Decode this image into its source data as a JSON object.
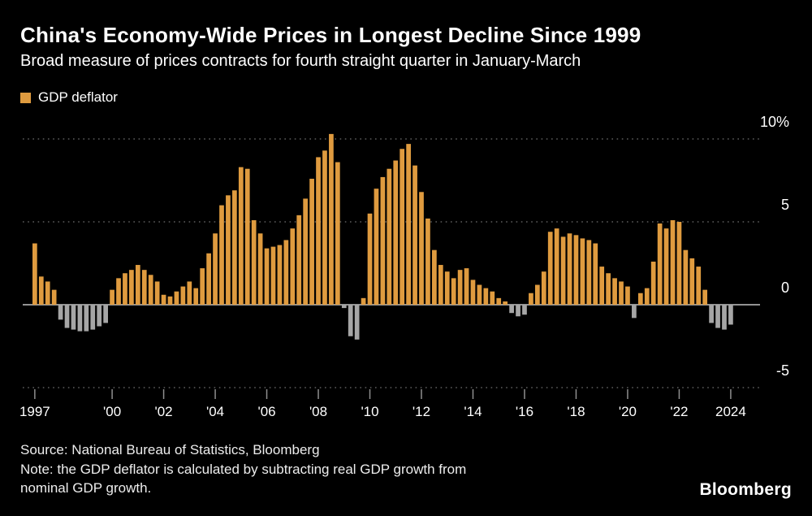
{
  "header": {
    "title": "China's Economy-Wide Prices in Longest Decline Since 1999",
    "subtitle": "Broad measure of prices contracts for fourth straight quarter in January-March"
  },
  "legend": {
    "label": "GDP deflator"
  },
  "footer": {
    "source": "Source: National Bureau of Statistics, Bloomberg",
    "note_line1": "Note: the GDP deflator is calculated by subtracting real GDP growth from",
    "note_line2": "nominal GDP growth.",
    "logo": "Bloomberg"
  },
  "colors": {
    "background": "#000000",
    "bar_positive": "#DF9B3F",
    "bar_negative": "#A6A6A6",
    "gridline": "#5E5E5E",
    "zero_axis": "#C2C2C2",
    "tick": "#8F8F8F",
    "text": "#FFFFFF"
  },
  "chart_data": {
    "type": "bar",
    "title": "China's Economy-Wide Prices in Longest Decline Since 1999",
    "series_name": "GDP deflator",
    "unit": "%",
    "frequency": "quarterly",
    "x_start_label": "1997 Q1",
    "x_end_label": "2024 Q1",
    "ylim": [
      -6.2,
      11.2
    ],
    "grid": "dotted horizontal",
    "legend_position": "top-left",
    "y_ticks": [
      {
        "value": 10,
        "label": "10%"
      },
      {
        "value": 5,
        "label": "5"
      },
      {
        "value": 0,
        "label": "0"
      },
      {
        "value": -5,
        "label": "-5"
      }
    ],
    "x_ticks": [
      {
        "year": 1997,
        "label": "1997"
      },
      {
        "year": 2000,
        "label": "'00"
      },
      {
        "year": 2002,
        "label": "'02"
      },
      {
        "year": 2004,
        "label": "'04"
      },
      {
        "year": 2006,
        "label": "'06"
      },
      {
        "year": 2008,
        "label": "'08"
      },
      {
        "year": 2010,
        "label": "'10"
      },
      {
        "year": 2012,
        "label": "'12"
      },
      {
        "year": 2014,
        "label": "'14"
      },
      {
        "year": 2016,
        "label": "'16"
      },
      {
        "year": 2018,
        "label": "'18"
      },
      {
        "year": 2020,
        "label": "'20"
      },
      {
        "year": 2022,
        "label": "'22"
      },
      {
        "year": 2024,
        "label": "2024"
      }
    ],
    "values": [
      3.7,
      1.7,
      1.4,
      0.9,
      -0.9,
      -1.4,
      -1.5,
      -1.6,
      -1.6,
      -1.5,
      -1.3,
      -1.1,
      0.9,
      1.6,
      1.9,
      2.1,
      2.4,
      2.1,
      1.8,
      1.4,
      0.6,
      0.5,
      0.8,
      1.1,
      1.4,
      1.0,
      2.2,
      3.1,
      4.3,
      6.0,
      6.6,
      6.9,
      8.3,
      8.2,
      5.1,
      4.3,
      3.4,
      3.5,
      3.6,
      3.9,
      4.6,
      5.4,
      6.4,
      7.6,
      8.9,
      9.3,
      10.3,
      8.6,
      -0.2,
      -1.9,
      -2.1,
      0.4,
      5.5,
      7.0,
      7.7,
      8.2,
      8.7,
      9.4,
      9.7,
      8.4,
      6.8,
      5.2,
      3.3,
      2.4,
      2.0,
      1.6,
      2.1,
      2.2,
      1.5,
      1.2,
      1.0,
      0.8,
      0.4,
      0.2,
      -0.5,
      -0.7,
      -0.6,
      0.7,
      1.2,
      2.0,
      4.4,
      4.6,
      4.1,
      4.3,
      4.2,
      4.0,
      3.9,
      3.7,
      2.3,
      1.9,
      1.6,
      1.4,
      1.1,
      -0.8,
      0.7,
      1.0,
      2.6,
      4.9,
      4.6,
      5.1,
      5.0,
      3.3,
      2.8,
      2.3,
      0.9,
      -1.1,
      -1.4,
      -1.5,
      -1.2
    ],
    "bar_color_positive": "#DF9B3F",
    "bar_color_negative": "#A6A6A6"
  }
}
